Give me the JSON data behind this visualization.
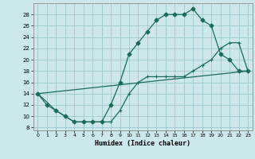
{
  "title": "",
  "xlabel": "Humidex (Indice chaleur)",
  "bg_color": "#cce8ec",
  "grid_color": "#9ec8cc",
  "line_color": "#1a6b5a",
  "xlim": [
    -0.5,
    23.5
  ],
  "ylim": [
    7.5,
    30
  ],
  "xticks": [
    0,
    1,
    2,
    3,
    4,
    5,
    6,
    7,
    8,
    9,
    10,
    11,
    12,
    13,
    14,
    15,
    16,
    17,
    18,
    19,
    20,
    21,
    22,
    23
  ],
  "yticks": [
    8,
    10,
    12,
    14,
    16,
    18,
    20,
    22,
    24,
    26,
    28
  ],
  "curve1_x": [
    0,
    1,
    2,
    3,
    4,
    5,
    6,
    7,
    8,
    9,
    10,
    11,
    12,
    13,
    14,
    15,
    16,
    17,
    18,
    19,
    20,
    21,
    22,
    23
  ],
  "curve1_y": [
    14,
    12,
    11,
    10,
    9,
    9,
    9,
    9,
    12,
    16,
    21,
    23,
    25,
    27,
    28,
    28,
    28,
    29,
    27,
    26,
    21,
    20,
    18,
    18
  ],
  "curve2_x": [
    0,
    2,
    3,
    4,
    5,
    6,
    7,
    8,
    9,
    10,
    11,
    12,
    13,
    14,
    15,
    16,
    17,
    18,
    19,
    20,
    21,
    22,
    23
  ],
  "curve2_y": [
    14,
    11,
    10,
    9,
    9,
    9,
    9,
    9,
    11,
    14,
    16,
    17,
    17,
    17,
    17,
    17,
    18,
    19,
    20,
    22,
    23,
    23,
    18
  ],
  "curve3_x": [
    0,
    23
  ],
  "curve3_y": [
    14,
    18
  ]
}
